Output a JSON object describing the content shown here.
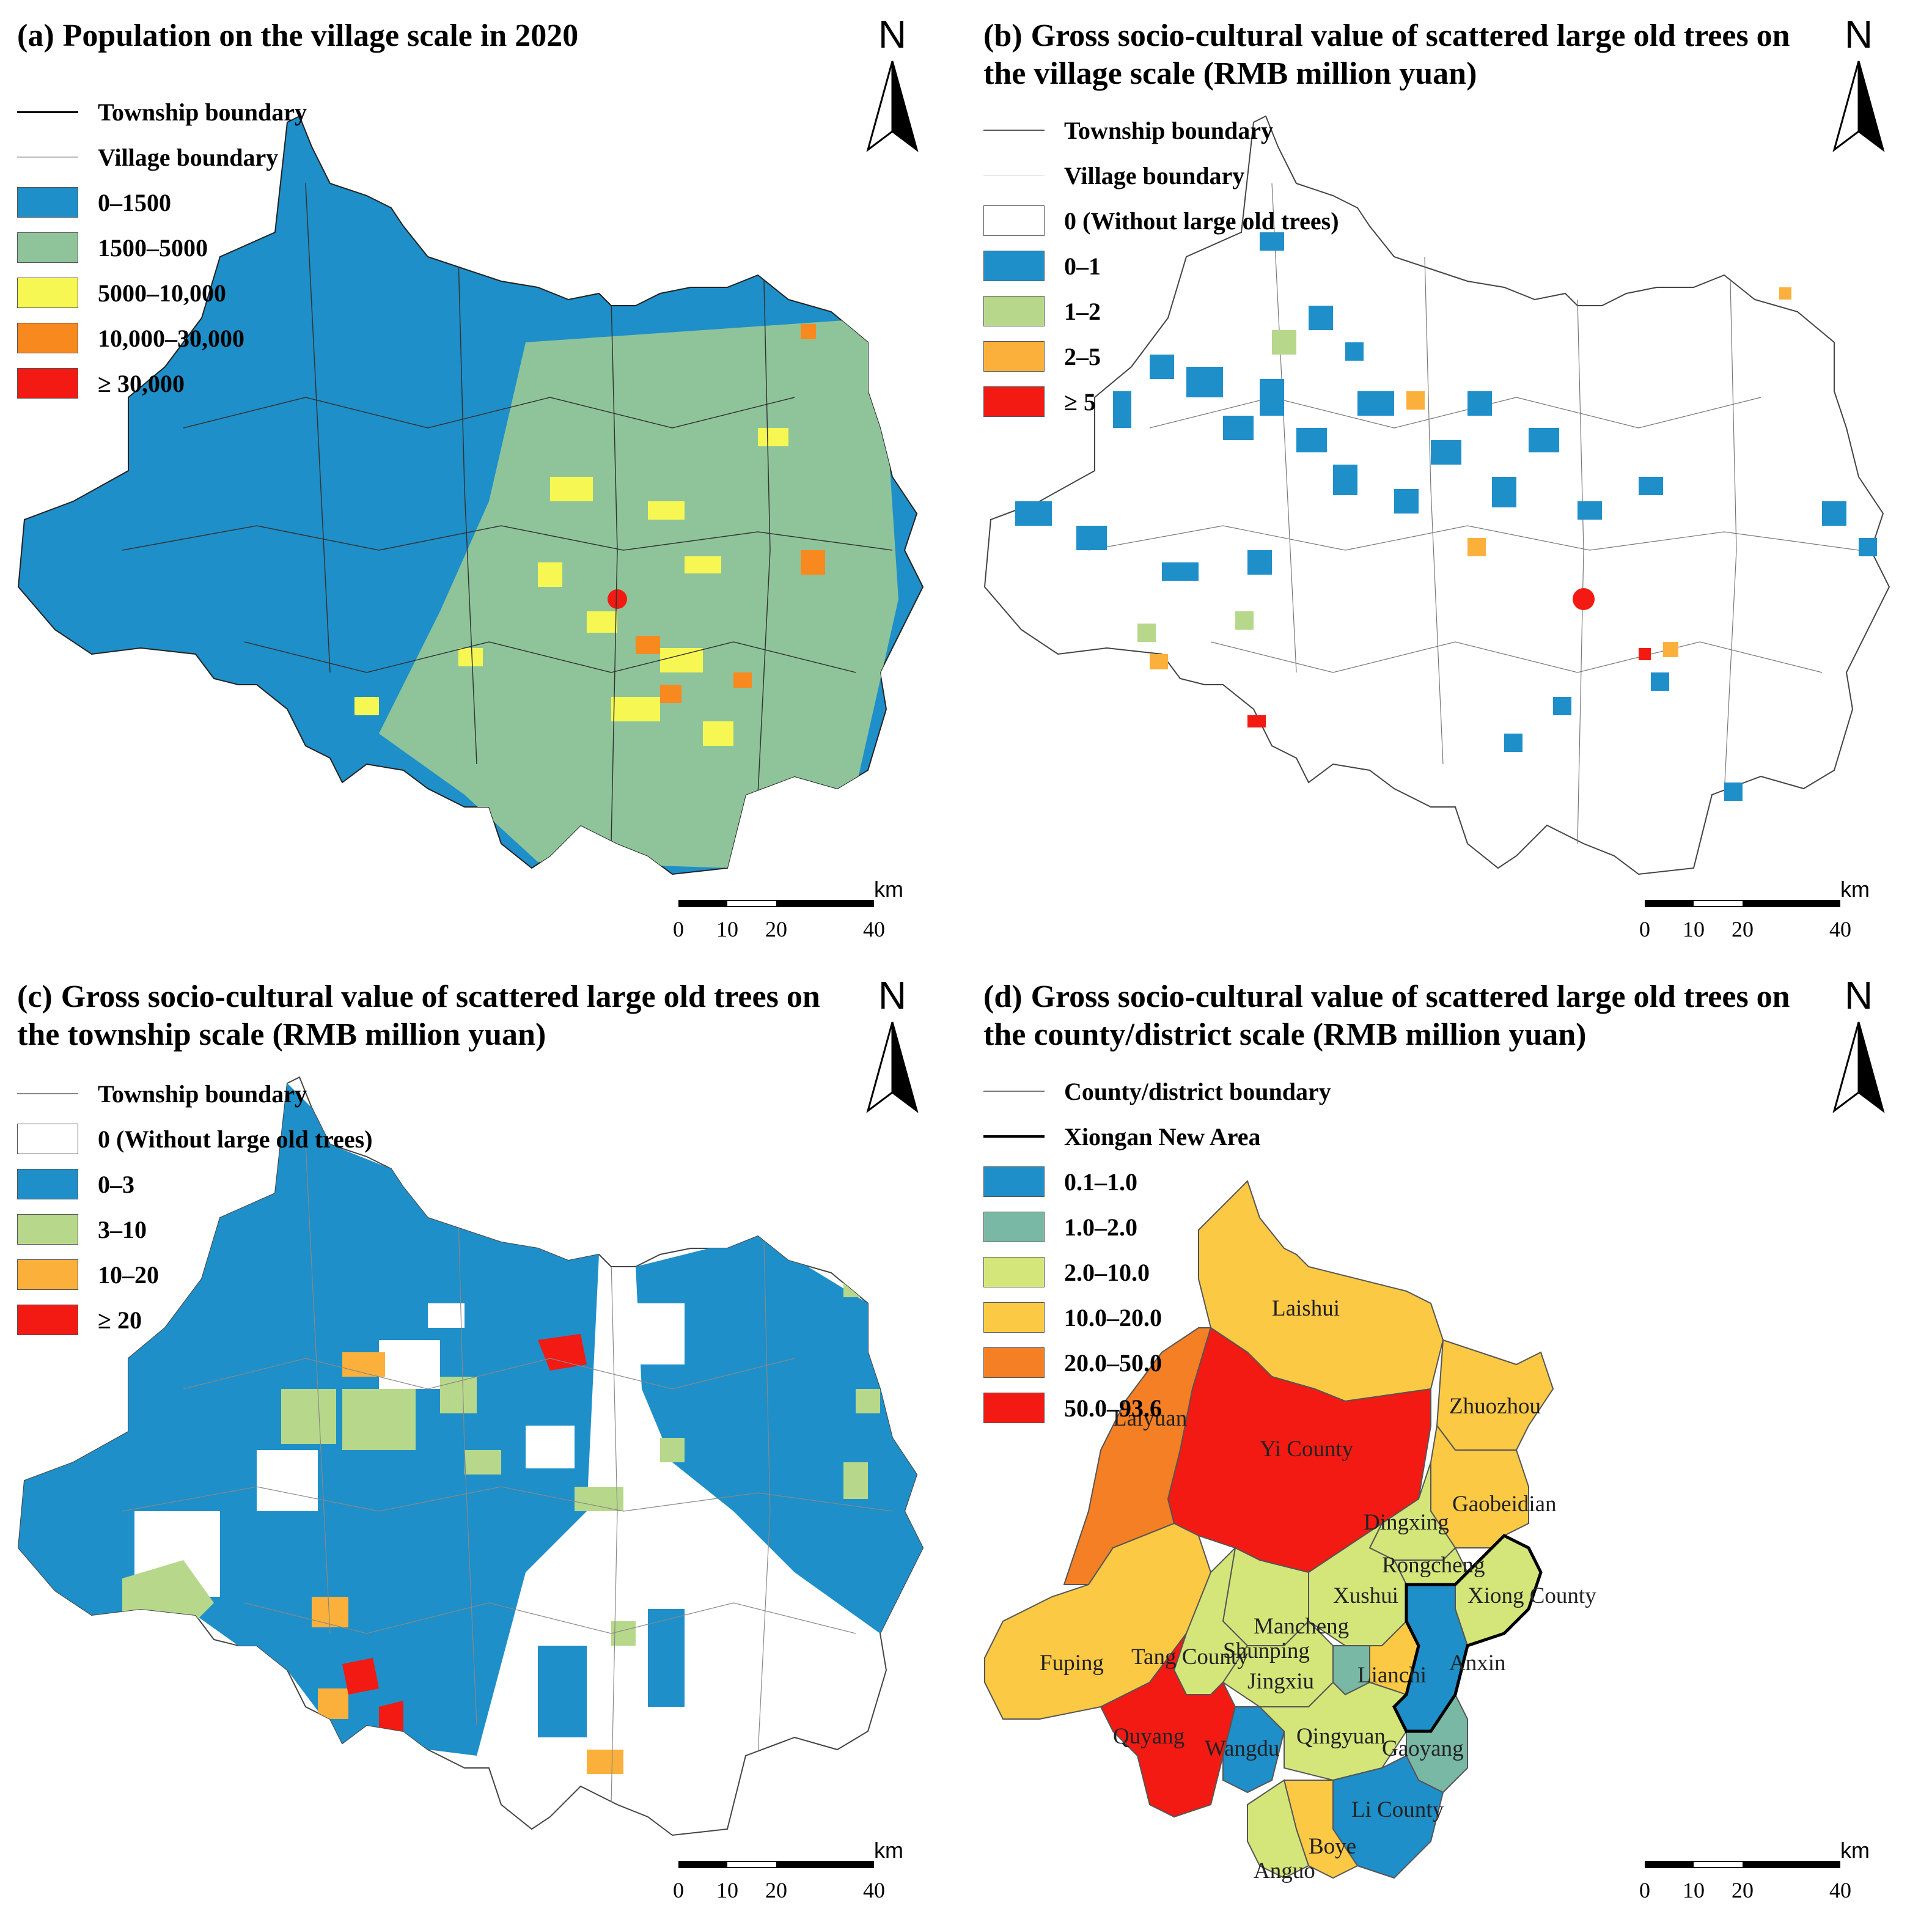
{
  "panels": {
    "a": {
      "label": "(a)",
      "title": "Population on the village scale in 2020",
      "legend_lines": [
        {
          "label": "Township boundary",
          "style": "dark"
        },
        {
          "label": "Village boundary",
          "style": "light"
        }
      ],
      "legend_classes": [
        {
          "label": "0–1500",
          "color": "#1e8fc8"
        },
        {
          "label": "1500–5000",
          "color": "#8fc49a"
        },
        {
          "label": "5000–10,000",
          "color": "#f7f754"
        },
        {
          "label": "10,000–30,000",
          "color": "#f8891f"
        },
        {
          "label": "≥ 30,000",
          "color": "#f21a12"
        }
      ]
    },
    "b": {
      "label": "(b)",
      "title": "Gross socio-cultural value of scattered large old trees on the village scale (RMB million yuan)",
      "legend_lines": [
        {
          "label": "Township boundary",
          "style": "dark"
        },
        {
          "label": "Village boundary",
          "style": "light"
        }
      ],
      "legend_classes": [
        {
          "label": "0 (Without large old trees)",
          "color": "#ffffff"
        },
        {
          "label": "0–1",
          "color": "#1e8fc8"
        },
        {
          "label": "1–2",
          "color": "#b7d88a"
        },
        {
          "label": "2–5",
          "color": "#fbb03b"
        },
        {
          "label": "≥ 5",
          "color": "#f21a12"
        }
      ]
    },
    "c": {
      "label": "(c)",
      "title": "Gross socio-cultural value of scattered large old trees on the township scale (RMB million yuan)",
      "legend_lines": [
        {
          "label": "Township boundary",
          "style": "light"
        }
      ],
      "legend_classes": [
        {
          "label": "0 (Without large old trees)",
          "color": "#ffffff"
        },
        {
          "label": "0–3",
          "color": "#1e8fc8"
        },
        {
          "label": "3–10",
          "color": "#b7d88a"
        },
        {
          "label": "10–20",
          "color": "#fbb03b"
        },
        {
          "label": "≥ 20",
          "color": "#f21a12"
        }
      ]
    },
    "d": {
      "label": "(d)",
      "title": "Gross socio-cultural value of scattered large old trees on the county/district scale (RMB million yuan)",
      "legend_lines": [
        {
          "label": "County/district boundary",
          "style": "light"
        },
        {
          "label": "Xiongan New Area",
          "style": "dark"
        }
      ],
      "legend_classes": [
        {
          "label": "0.1–1.0",
          "color": "#1e8fc8"
        },
        {
          "label": "1.0–2.0",
          "color": "#79b8a4"
        },
        {
          "label": "2.0–10.0",
          "color": "#d4e67a"
        },
        {
          "label": "10.0–20.0",
          "color": "#fcc945"
        },
        {
          "label": "20.0–50.0",
          "color": "#f47f25"
        },
        {
          "label": "50.0–93.6",
          "color": "#f21a12"
        }
      ],
      "regions": [
        {
          "name": "Laishui",
          "class": 3
        },
        {
          "name": "Zhuozhou",
          "class": 3
        },
        {
          "name": "Laiyuan",
          "class": 4
        },
        {
          "name": "Yi County",
          "class": 5
        },
        {
          "name": "Gaobeidian",
          "class": 3
        },
        {
          "name": "Dingxing",
          "class": 2
        },
        {
          "name": "Rongcheng",
          "class": 2
        },
        {
          "name": "Xushui",
          "class": 2
        },
        {
          "name": "Xiong County",
          "class": 2
        },
        {
          "name": "Mancheng",
          "class": 2
        },
        {
          "name": "Fuping",
          "class": 3
        },
        {
          "name": "Tang County",
          "class": 2
        },
        {
          "name": "Shunping",
          "class": 2
        },
        {
          "name": "Jingxiu",
          "class": 1
        },
        {
          "name": "Lianchi",
          "class": 3
        },
        {
          "name": "Anxin",
          "class": 0
        },
        {
          "name": "Quyang",
          "class": 5
        },
        {
          "name": "Wangdu",
          "class": 0
        },
        {
          "name": "Qingyuan",
          "class": 2
        },
        {
          "name": "Gaoyang",
          "class": 1
        },
        {
          "name": "Li County",
          "class": 0
        },
        {
          "name": "Boye",
          "class": 3
        },
        {
          "name": "Anguo",
          "class": 2
        }
      ]
    }
  },
  "north_arrow": {
    "letter": "N"
  },
  "scale_bar": {
    "unit": "km",
    "ticks": [
      "0",
      "10",
      "20",
      "40"
    ]
  }
}
